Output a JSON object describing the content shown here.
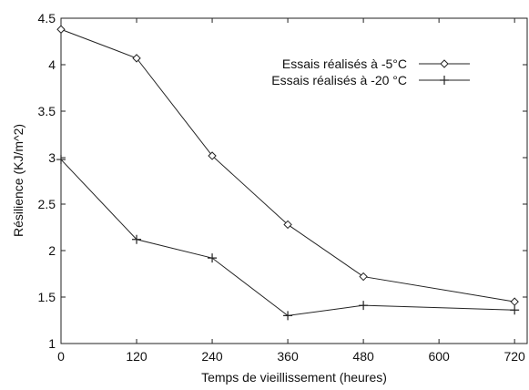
{
  "chart_data": {
    "type": "line",
    "title": "",
    "xlabel": "Temps de vieillissement (heures)",
    "ylabel": "Résilience (KJ/m^2)",
    "xlim": [
      0,
      740
    ],
    "ylim": [
      1,
      4.5
    ],
    "x_ticks": [
      0,
      120,
      240,
      360,
      480,
      600,
      720
    ],
    "y_ticks": [
      1,
      1.5,
      2,
      2.5,
      3,
      3.5,
      4,
      4.5
    ],
    "y_tick_labels": [
      "1",
      "1.5",
      "2",
      "2.5",
      "3",
      "3.5",
      "4",
      "4.5"
    ],
    "grid": false,
    "legend_position": "top-right",
    "series": [
      {
        "name": "Essais réalisés à -5°C",
        "marker": "diamond",
        "x": [
          0,
          120,
          240,
          360,
          480,
          720
        ],
        "values": [
          4.38,
          4.07,
          3.02,
          2.28,
          1.72,
          1.45
        ]
      },
      {
        "name": "Essais réalisés à -20 °C",
        "marker": "plus",
        "x": [
          0,
          120,
          240,
          360,
          480,
          720
        ],
        "values": [
          2.98,
          2.12,
          1.92,
          1.3,
          1.41,
          1.36
        ]
      }
    ]
  }
}
